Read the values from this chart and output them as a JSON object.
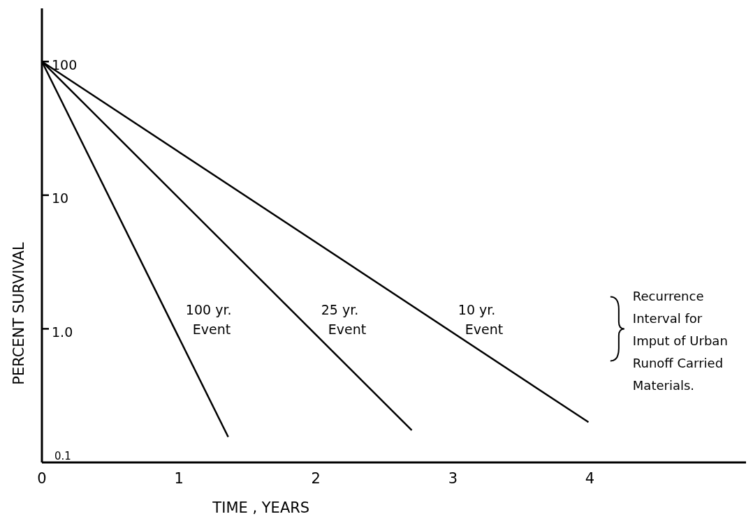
{
  "chart_data": {
    "type": "line",
    "xlabel": "TIME , YEARS",
    "ylabel": "PERCENT SURVIVAL",
    "log": "y",
    "xlim": [
      0,
      5.14
    ],
    "xticks": [
      0,
      1,
      2,
      3,
      4
    ],
    "ylim": [
      0.1,
      250
    ],
    "yticks": [
      100,
      10,
      {
        "value": 1,
        "label": "1.0"
      },
      0.1
    ],
    "grid": false,
    "marker": "none",
    "line_style": "solid",
    "series": [
      {
        "name": "100 yr. Event",
        "color": "#000000",
        "x": [
          0,
          1.36
        ],
        "values": [
          100,
          0.155
        ]
      },
      {
        "name": "25 yr. Event",
        "color": "#000000",
        "x": [
          0,
          2.7
        ],
        "values": [
          100,
          0.174
        ]
      },
      {
        "name": "10 yr. Event",
        "color": "#000000",
        "x": [
          0,
          3.99
        ],
        "values": [
          100,
          0.2
        ]
      }
    ],
    "annotations": [
      "Recurrence Interval for Imput of Urban Runoff Carried Materials."
    ]
  }
}
